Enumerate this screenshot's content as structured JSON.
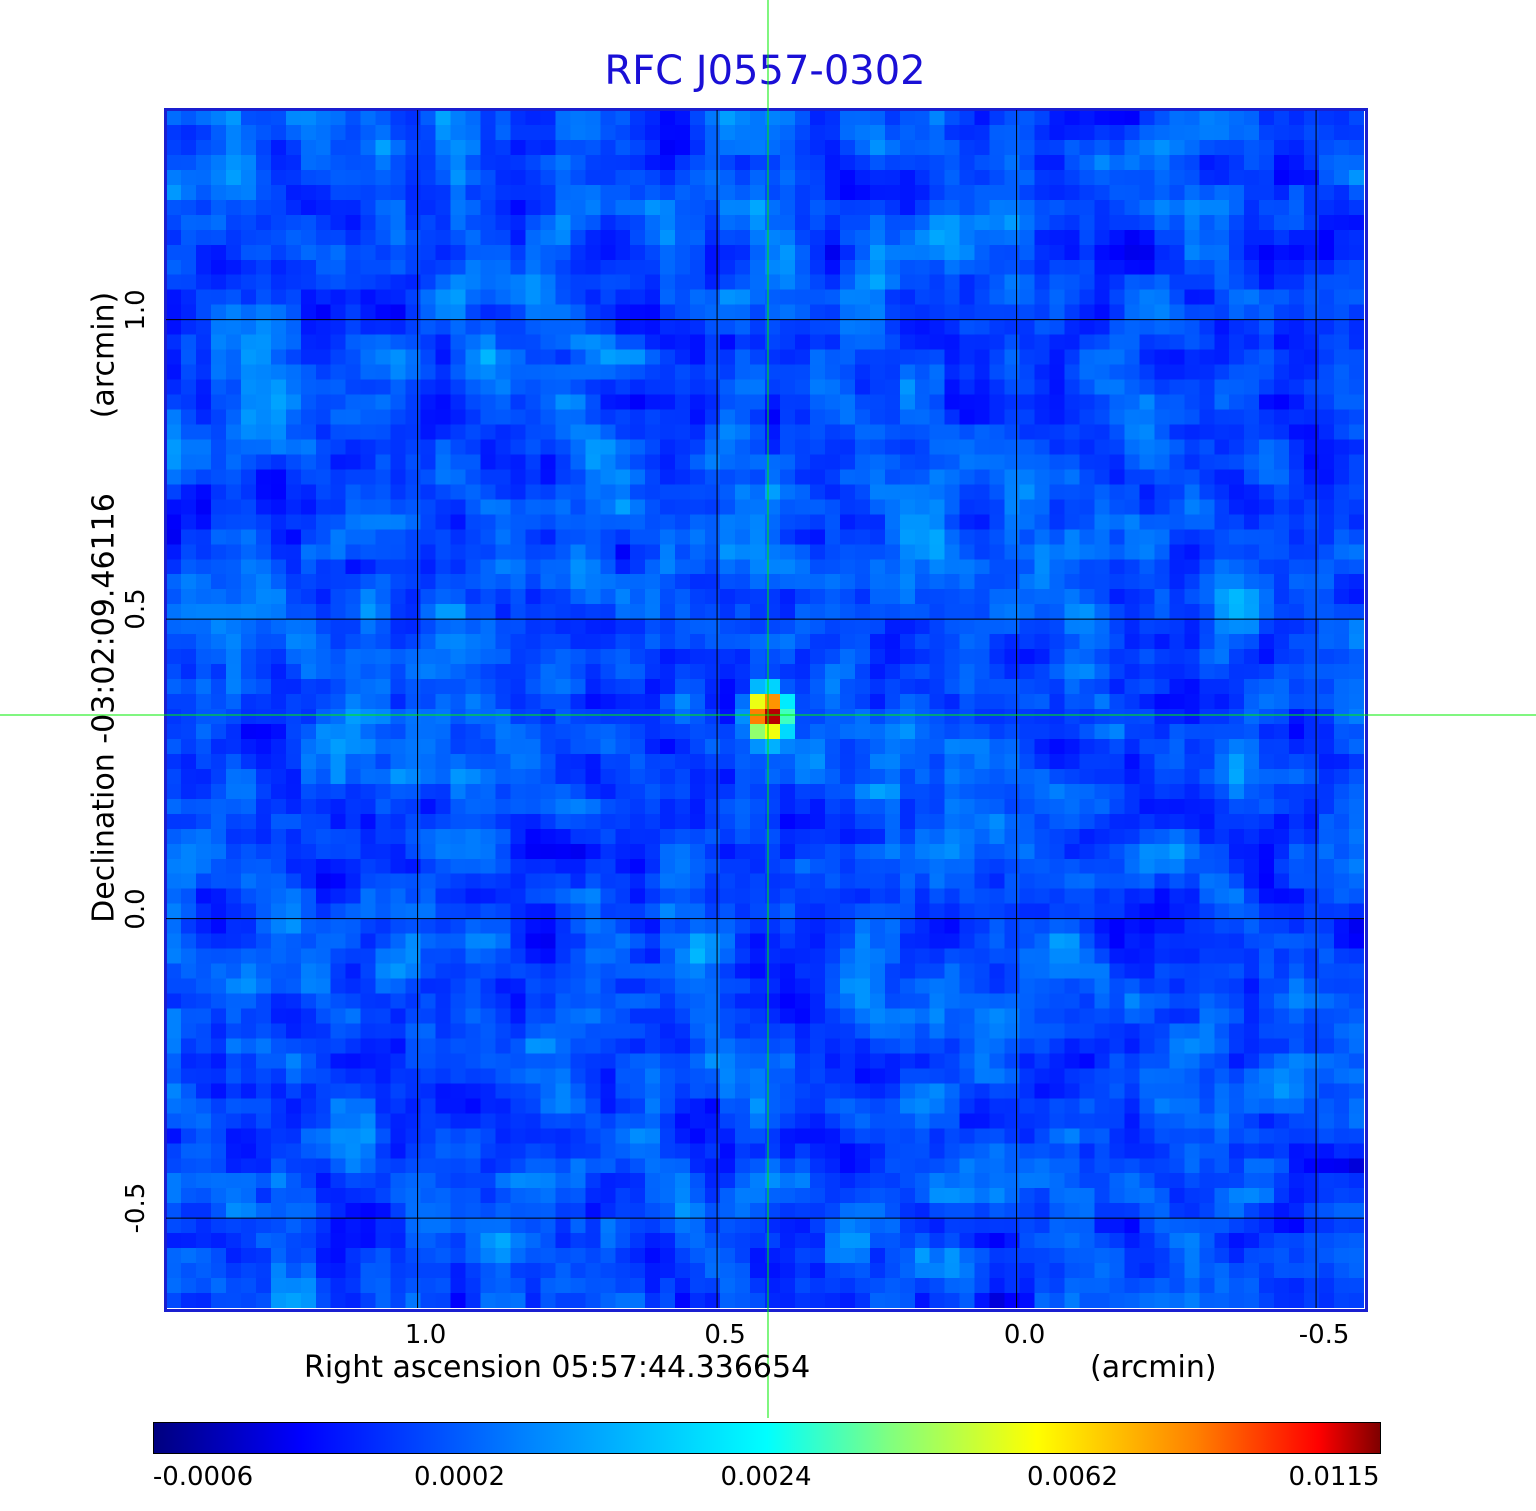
{
  "chart_data": {
    "type": "heatmap",
    "title": "RFC J0557-0302",
    "xlabel": "Right ascension  05:57:44.336654",
    "xunit": "(arcmin)",
    "ylabel": "Declination  -03:02:09.46116",
    "yunit": "(arcmin)",
    "xlim": [
      1.42,
      -0.58
    ],
    "ylim": [
      -0.65,
      1.35
    ],
    "xticks": [
      1.0,
      0.5,
      0.0,
      -0.5
    ],
    "xtick_labels": [
      "1.0",
      "0.5",
      "0.0",
      "-0.5"
    ],
    "yticks": [
      1.0,
      0.5,
      0.0,
      -0.5
    ],
    "ytick_labels": [
      "1.0",
      "0.5",
      "0.0",
      "-0.5"
    ],
    "grid": true,
    "crosshair": {
      "x": 0.415,
      "y": 0.34,
      "color": "#00ee00"
    },
    "peak": {
      "x": 0.415,
      "y": 0.34,
      "value": 0.0115
    },
    "colormap": "jet",
    "colorbar_ticks": [
      "-0.0006",
      "0.0002",
      "0.0024",
      "0.0062",
      "0.0115"
    ],
    "colorbar_range": [
      -0.0006,
      0.0115
    ]
  }
}
